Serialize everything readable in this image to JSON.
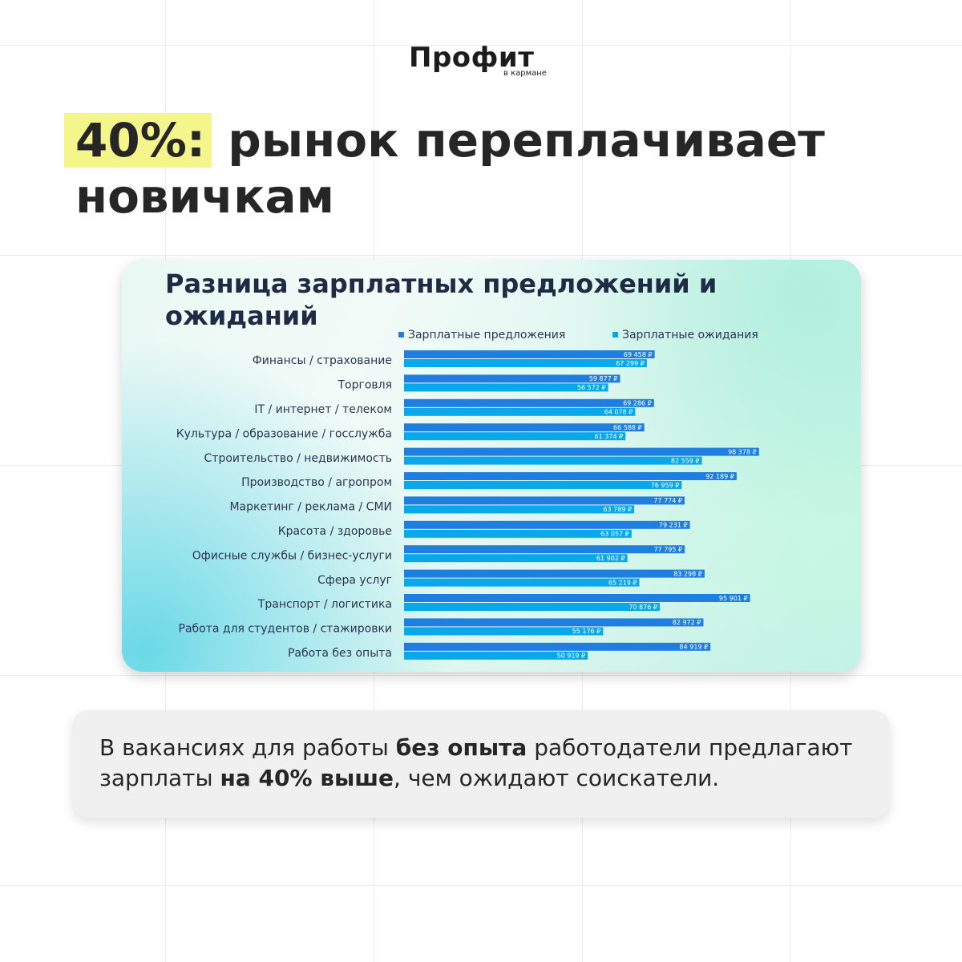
{
  "logo": {
    "text": "Профит",
    "subtext": "в кармане"
  },
  "headline": {
    "highlight": "40%:",
    "text": " рынок переплачивает новичкам"
  },
  "caption": {
    "part1": "В вакансиях для работы ",
    "bold1": "без опыта",
    "part2": " работодатели предлагают зарплаты ",
    "bold2": "на 40% выше",
    "part3": ", чем ожидают соискатели."
  },
  "colors": {
    "highlight": "#f4f58a",
    "offers": "#1f7fe0",
    "expectations": "#08a8ea"
  },
  "chart_data": {
    "type": "bar",
    "orientation": "horizontal",
    "title": "Разница зарплатных предложений и ожиданий",
    "legend_position": "top",
    "xlim": [
      0,
      100000
    ],
    "grid": false,
    "categories": [
      "Финансы / страхование",
      "Торговля",
      "IT / интернет / телеком",
      "Культура / образование / госслужба",
      "Строительство / недвижимость",
      "Производство / агропром",
      "Маркетинг / реклама / СМИ",
      "Красота / здоровье",
      "Офисные службы / бизнес-услуги",
      "Сфера услуг",
      "Транспорт / логистика",
      "Работа для студентов / стажировки",
      "Работа без опыта"
    ],
    "series": [
      {
        "name": "Зарплатные предложения",
        "values": [
          69458,
          59877,
          69286,
          66588,
          98378,
          92189,
          77774,
          79231,
          77795,
          83298,
          95901,
          82972,
          84919
        ],
        "labels": [
          "69 458 ₽",
          "59 877 ₽",
          "69 286 ₽",
          "66 588 ₽",
          "98 378 ₽",
          "92 189 ₽",
          "77 774 ₽",
          "79 231 ₽",
          "77 795 ₽",
          "83 298 ₽",
          "95 901 ₽",
          "82 972 ₽",
          "84 919 ₽"
        ]
      },
      {
        "name": "Зарплатные ожидания",
        "values": [
          67299,
          56572,
          64078,
          61374,
          82559,
          76959,
          63789,
          63057,
          61902,
          65219,
          70876,
          55176,
          50919
        ],
        "labels": [
          "67 299 ₽",
          "56 572 ₽",
          "64 078 ₽",
          "61 374 ₽",
          "82 559 ₽",
          "76 959 ₽",
          "63 789 ₽",
          "63 057 ₽",
          "61 902 ₽",
          "65 219 ₽",
          "70 876 ₽",
          "55 176 ₽",
          "50 919 ₽"
        ]
      }
    ]
  }
}
